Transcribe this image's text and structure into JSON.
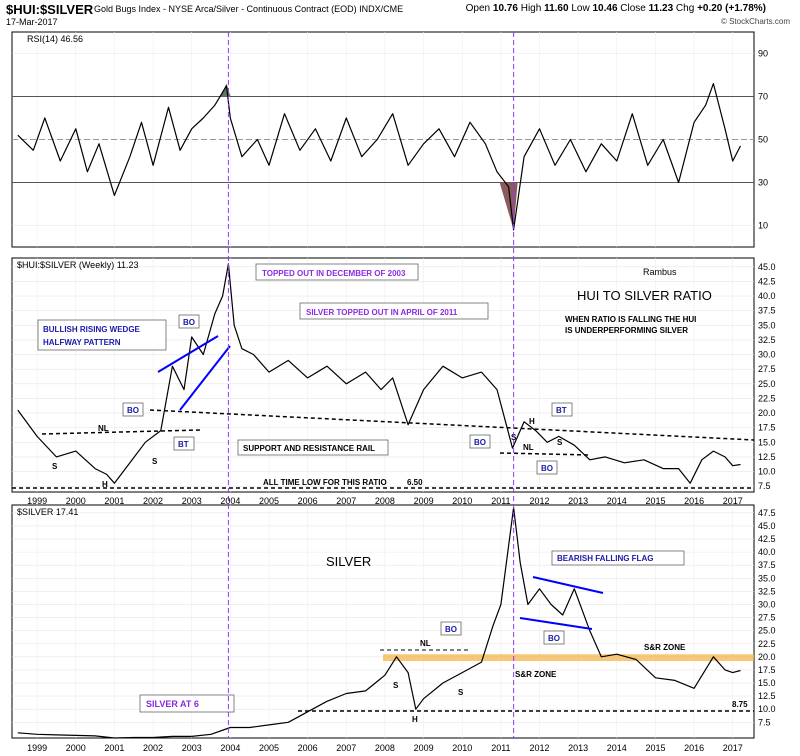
{
  "header": {
    "symbol": "$HUI:$SILVER",
    "description": "Gold Bugs Index - NYSE Arca/Silver - Continuous Contract (EOD) INDX/CME",
    "date": "17-Mar-2017",
    "open_label": "Open",
    "open": "10.76",
    "high_label": "High",
    "high": "11.60",
    "low_label": "Low",
    "low": "10.46",
    "close_label": "Close",
    "close": "11.23",
    "chg_label": "Chg",
    "chg": "+0.20 (+1.78%)",
    "credit": "© StockCharts.com"
  },
  "chart_data": [
    {
      "type": "line",
      "panel": "rsi",
      "legend": "RSI(14) 46.56",
      "ylim": [
        0,
        100
      ],
      "yticks": [
        "10",
        "30",
        "50",
        "70",
        "90"
      ],
      "reference_lines": [
        30,
        50,
        70
      ],
      "x": [
        1998.5,
        1998.9,
        1999.2,
        1999.6,
        2000.0,
        2000.3,
        2000.6,
        2001.0,
        2001.4,
        2001.7,
        2002.0,
        2002.4,
        2002.7,
        2003.0,
        2003.3,
        2003.6,
        2003.9,
        2004.0,
        2004.3,
        2004.7,
        2005.0,
        2005.4,
        2005.8,
        2006.2,
        2006.6,
        2007.0,
        2007.4,
        2007.8,
        2008.2,
        2008.6,
        2009.0,
        2009.4,
        2009.8,
        2010.2,
        2010.6,
        2010.9,
        2011.2,
        2011.33,
        2011.6,
        2012.0,
        2012.4,
        2012.8,
        2013.2,
        2013.6,
        2014.0,
        2014.4,
        2014.8,
        2015.2,
        2015.6,
        2016.0,
        2016.3,
        2016.5,
        2016.8,
        2017.0,
        2017.2
      ],
      "values": [
        52,
        45,
        60,
        40,
        55,
        35,
        48,
        24,
        42,
        58,
        38,
        65,
        45,
        55,
        60,
        66,
        75,
        60,
        42,
        50,
        38,
        62,
        45,
        55,
        40,
        60,
        42,
        50,
        62,
        38,
        48,
        55,
        42,
        58,
        48,
        35,
        28,
        8,
        42,
        55,
        38,
        50,
        35,
        48,
        40,
        62,
        38,
        50,
        30,
        58,
        66,
        76,
        55,
        40,
        47
      ]
    },
    {
      "type": "line",
      "panel": "ratio",
      "legend": "$HUI:$SILVER (Weekly) 11.23",
      "ylim": [
        6.5,
        46.5
      ],
      "yticks": [
        "7.5",
        "10.0",
        "12.5",
        "15.0",
        "17.5",
        "20.0",
        "22.5",
        "25.0",
        "27.5",
        "30.0",
        "32.5",
        "35.0",
        "37.5",
        "40.0",
        "42.5",
        "45.0"
      ],
      "x": [
        1998.5,
        1999.0,
        1999.5,
        2000.0,
        2000.5,
        2000.8,
        2001.0,
        2001.4,
        2001.8,
        2002.2,
        2002.5,
        2002.8,
        2003.0,
        2003.3,
        2003.6,
        2003.8,
        2003.95,
        2004.1,
        2004.3,
        2004.6,
        2005.0,
        2005.5,
        2006.0,
        2006.5,
        2007.0,
        2007.5,
        2007.9,
        2008.2,
        2008.6,
        2009.0,
        2009.5,
        2010.0,
        2010.5,
        2010.9,
        2011.3,
        2011.6,
        2011.9,
        2012.2,
        2012.5,
        2012.9,
        2013.3,
        2013.7,
        2014.2,
        2014.7,
        2015.2,
        2015.6,
        2015.9,
        2016.2,
        2016.5,
        2016.8,
        2017.0,
        2017.2
      ],
      "values": [
        20.5,
        16.0,
        12.5,
        13.5,
        10.5,
        9.5,
        8.0,
        11.5,
        15.0,
        17.0,
        28.0,
        24.0,
        33.0,
        30.0,
        37.0,
        40.0,
        45.5,
        35.0,
        31.0,
        30.0,
        27.0,
        29.0,
        26.0,
        28.0,
        25.0,
        27.0,
        24.0,
        26.0,
        18.0,
        24.0,
        28.0,
        26.0,
        27.0,
        24.0,
        14.0,
        18.5,
        17.0,
        15.0,
        16.0,
        14.5,
        12.0,
        12.5,
        11.5,
        12.0,
        10.5,
        10.5,
        8.0,
        12.0,
        13.5,
        12.5,
        11.0,
        11.2
      ]
    },
    {
      "type": "line",
      "panel": "silver",
      "legend": "$SILVER 17.41",
      "ylim": [
        4.5,
        49.0
      ],
      "yticks": [
        "7.5",
        "10.0",
        "12.5",
        "15.0",
        "17.5",
        "20.0",
        "22.5",
        "25.0",
        "27.5",
        "30.0",
        "32.5",
        "35.0",
        "37.5",
        "40.0",
        "42.5",
        "45.0",
        "47.5"
      ],
      "x": [
        1998.5,
        1999.0,
        1999.5,
        2000.0,
        2000.5,
        2001.0,
        2001.5,
        2002.0,
        2002.5,
        2003.0,
        2003.5,
        2004.0,
        2004.5,
        2005.0,
        2005.5,
        2006.0,
        2006.5,
        2007.0,
        2007.5,
        2008.0,
        2008.3,
        2008.6,
        2008.8,
        2009.0,
        2009.5,
        2010.0,
        2010.5,
        2010.8,
        2011.0,
        2011.33,
        2011.5,
        2011.7,
        2012.0,
        2012.3,
        2012.6,
        2012.9,
        2013.3,
        2013.6,
        2014.0,
        2014.5,
        2015.0,
        2015.5,
        2016.0,
        2016.5,
        2016.8,
        2017.0,
        2017.2
      ],
      "values": [
        5.5,
        5.2,
        5.1,
        5.0,
        4.9,
        4.5,
        4.6,
        4.6,
        4.8,
        4.8,
        5.2,
        6.5,
        6.5,
        7.0,
        7.5,
        9.5,
        11.5,
        13.0,
        13.5,
        16.5,
        20.0,
        17.0,
        10.0,
        12.0,
        15.0,
        17.0,
        19.0,
        26.0,
        30.0,
        48.5,
        38.0,
        30.0,
        33.0,
        30.0,
        28.0,
        33.0,
        25.0,
        20.0,
        20.5,
        19.5,
        16.0,
        15.5,
        14.0,
        20.0,
        17.5,
        17.0,
        17.4
      ]
    }
  ],
  "x_axis": {
    "range": [
      1998.35,
      2017.55
    ],
    "ticks": [
      "1999",
      "2000",
      "2001",
      "2002",
      "2003",
      "2004",
      "2005",
      "2006",
      "2007",
      "2008",
      "2009",
      "2010",
      "2011",
      "2012",
      "2013",
      "2014",
      "2015",
      "2016",
      "2017"
    ]
  },
  "vlines": [
    2003.95,
    2011.33
  ],
  "annotations": {
    "rambus": "Rambus",
    "ratio_title": "HUI TO SILVER RATIO",
    "ratio_note_1": "WHEN RATIO IS FALLING THE HUI",
    "ratio_note_2": "IS UNDERPERFORMING SILVER",
    "topped_2003": "TOPPED OUT IN DECEMBER OF 2003",
    "silver_topped_2011": "SILVER TOPPED OUT IN APRIL OF 2011",
    "wedge_1": "BULLISH RISING WEDGE",
    "wedge_2": "HALFWAY PATTERN",
    "bo": "BO",
    "bt": "BT",
    "nl": "NL",
    "s": "S",
    "h": "H",
    "support_rail": "SUPPORT AND RESISTANCE RAIL",
    "all_time_low": "ALL TIME  LOW FOR THIS RATIO",
    "atl_value": "6.50",
    "silver_title": "SILVER",
    "bearish_flag": "BEARISH FALLING FLAG",
    "sr_zone": "S&R ZONE",
    "silver_at_6": "SILVER AT 6",
    "silver_8_75": "8.75"
  },
  "colors": {
    "price_line": "#000000",
    "vline": "#9933ff",
    "pattern_line": "#0000ff",
    "label_blue": "#1a1aa8",
    "label_purple": "#8a2be2",
    "sr_zone": "#f5b041",
    "rsi_overbought": "#5a7a5a",
    "rsi_oversold": "#8b5a5a"
  }
}
